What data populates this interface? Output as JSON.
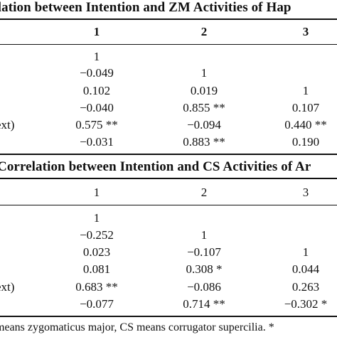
{
  "table1": {
    "caption": "relation between Intention and ZM Activities of Hap",
    "headers": [
      "1",
      "2",
      "3"
    ],
    "rows": [
      {
        "label": "",
        "cells": [
          "1",
          "",
          ""
        ]
      },
      {
        "label": "",
        "cells": [
          "−0.049",
          "1",
          ""
        ]
      },
      {
        "label": "",
        "cells": [
          "0.102",
          "0.019",
          "1"
        ]
      },
      {
        "label": "",
        "cells": [
          "−0.040",
          "0.855 **",
          "0.107"
        ]
      },
      {
        "label": "ext)",
        "cells": [
          "0.575 **",
          "−0.094",
          "0.440 **"
        ]
      },
      {
        "label": "",
        "cells": [
          "−0.031",
          "0.883 **",
          "0.190"
        ]
      }
    ]
  },
  "table2": {
    "caption": "Correlation between Intention and CS Activities of Ar",
    "headers": [
      "1",
      "2",
      "3"
    ],
    "rows": [
      {
        "label": "",
        "cells": [
          "1",
          "",
          ""
        ]
      },
      {
        "label": "",
        "cells": [
          "−0.252",
          "1",
          ""
        ]
      },
      {
        "label": "",
        "cells": [
          "0.023",
          "−0.107",
          "1"
        ]
      },
      {
        "label": "",
        "cells": [
          "0.081",
          "0.308 *",
          "0.044"
        ]
      },
      {
        "label": "ext)",
        "cells": [
          "0.683 **",
          "−0.086",
          "0.263"
        ]
      },
      {
        "label": "",
        "cells": [
          "−0.077",
          "0.714 **",
          "−0.302 *"
        ]
      }
    ]
  },
  "footnote": "means zygomaticus major, CS means corrugator supercilia. *"
}
